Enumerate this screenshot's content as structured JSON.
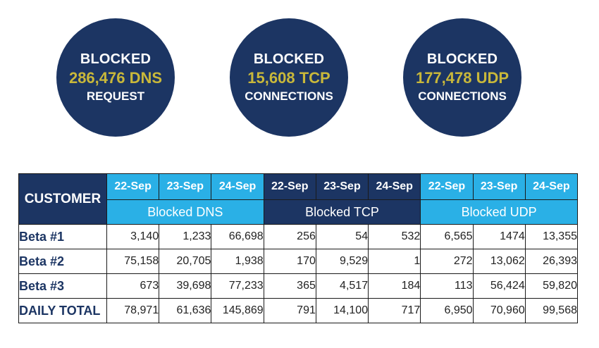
{
  "circles": [
    {
      "line1": "BLOCKED",
      "line2": "286,476 DNS",
      "line3": "REQUEST"
    },
    {
      "line1": "BLOCKED",
      "line2": "15,608 TCP",
      "line3": "CONNECTIONS"
    },
    {
      "line1": "BLOCKED",
      "line2": "177,478 UDP",
      "line3": "CONNECTIONS"
    }
  ],
  "table": {
    "customer_header": "CUSTOMER",
    "dates": [
      "22-Sep",
      "23-Sep",
      "24-Sep",
      "22-Sep",
      "23-Sep",
      "24-Sep",
      "22-Sep",
      "23-Sep",
      "24-Sep"
    ],
    "groups": [
      "Blocked DNS",
      "Blocked TCP",
      "Blocked UDP"
    ],
    "rows": [
      {
        "name": "Beta #1",
        "values": [
          "3,140",
          "1,233",
          "66,698",
          "256",
          "54",
          "532",
          "6,565",
          "1474",
          "13,355"
        ]
      },
      {
        "name": "Beta #2",
        "values": [
          "75,158",
          "20,705",
          "1,938",
          "170",
          "9,529",
          "1",
          "272",
          "13,062",
          "26,393"
        ]
      },
      {
        "name": "Beta #3",
        "values": [
          "673",
          "39,698",
          "77,233",
          "365",
          "4,517",
          "184",
          "113",
          "56,424",
          "59,820"
        ]
      },
      {
        "name": "DAILY TOTAL",
        "values": [
          "78,971",
          "61,636",
          "145,869",
          "791",
          "14,100",
          "717",
          "6,950",
          "70,960",
          "99,568"
        ]
      }
    ]
  },
  "colors": {
    "navy": "#1c3563",
    "light_blue": "#2ab0e6",
    "gold": "#c9b83a"
  }
}
